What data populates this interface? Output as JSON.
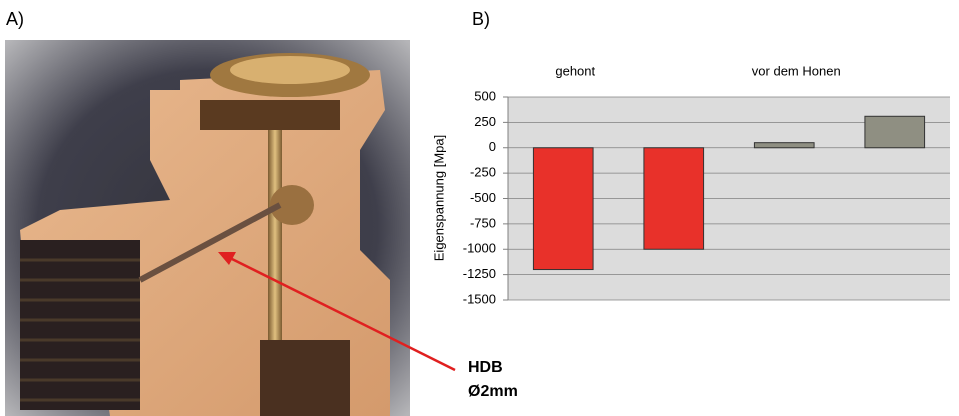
{
  "figure": {
    "label_a": "A)",
    "label_b": "B)",
    "annotation": [
      "HDB",
      "Ø2mm"
    ]
  },
  "chart_data": {
    "type": "bar",
    "ylabel": "Eigenspannung [Mpa]",
    "group_labels": [
      "gehont",
      "vor dem Honen"
    ],
    "categories": [
      null,
      null,
      null,
      null
    ],
    "values": [
      -1200,
      -1000,
      50,
      310
    ],
    "colors": [
      "#e8312a",
      "#e8312a",
      "#8f8f82",
      "#8f8f82"
    ],
    "ylim": [
      -1500,
      500
    ],
    "yticks": [
      -1500,
      -1250,
      -1000,
      -750,
      -500,
      -250,
      0,
      250,
      500
    ],
    "grid": true,
    "plot_background": "#dcdcdc"
  }
}
